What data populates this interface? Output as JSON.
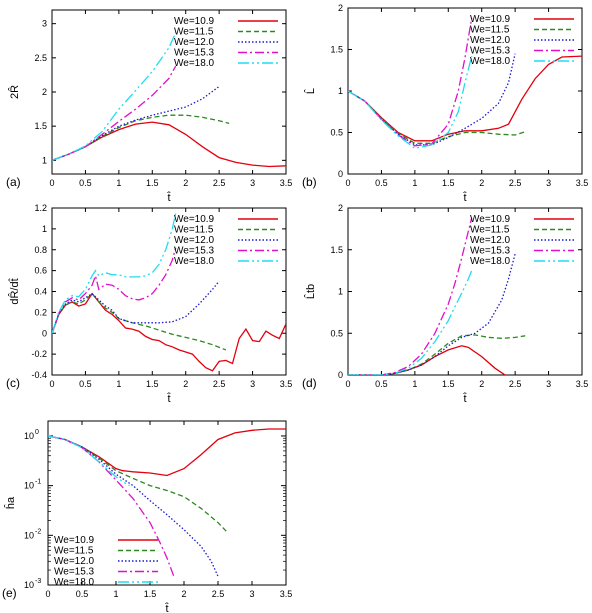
{
  "figure": {
    "colors": {
      "We=10.9": "#e3000f",
      "We=11.5": "#2a8a1d",
      "We=12.0": "#1a1ad6",
      "We=15.3": "#e010c8",
      "We=18.0": "#20dcee"
    }
  },
  "chart_data": [
    {
      "panel": "(a)",
      "type": "line",
      "xlabel": "t̂",
      "ylabel": "2R̂",
      "xlim": [
        0,
        3.5
      ],
      "ylim": [
        0.8,
        3.2
      ],
      "xticks": [
        "0",
        "0.5",
        "1",
        "1.5",
        "2",
        "2.5",
        "3",
        "3.5"
      ],
      "yticks": [
        "1",
        "1.5",
        "2",
        "2.5",
        "3"
      ],
      "legend_position": "top-right",
      "series": [
        {
          "name": "We=10.9",
          "x": [
            0,
            0.25,
            0.5,
            0.75,
            1.0,
            1.25,
            1.5,
            1.75,
            2.0,
            2.25,
            2.5,
            2.75,
            3.0,
            3.25,
            3.5
          ],
          "y": [
            1.0,
            1.09,
            1.2,
            1.34,
            1.45,
            1.53,
            1.56,
            1.52,
            1.38,
            1.2,
            1.04,
            0.97,
            0.93,
            0.91,
            0.92
          ]
        },
        {
          "name": "We=11.5",
          "x": [
            0,
            0.25,
            0.5,
            0.75,
            1.0,
            1.25,
            1.5,
            1.75,
            2.0,
            2.25,
            2.5,
            2.65
          ],
          "y": [
            1.0,
            1.09,
            1.2,
            1.35,
            1.48,
            1.58,
            1.63,
            1.66,
            1.66,
            1.63,
            1.58,
            1.54
          ]
        },
        {
          "name": "We=12.0",
          "x": [
            0,
            0.25,
            0.5,
            0.75,
            1.0,
            1.25,
            1.5,
            1.75,
            2.0,
            2.25,
            2.5
          ],
          "y": [
            1.0,
            1.09,
            1.2,
            1.36,
            1.5,
            1.59,
            1.66,
            1.72,
            1.78,
            1.9,
            2.08
          ]
        },
        {
          "name": "We=15.3",
          "x": [
            0,
            0.25,
            0.5,
            0.75,
            1.0,
            1.25,
            1.5,
            1.75,
            1.85
          ],
          "y": [
            1.0,
            1.09,
            1.2,
            1.38,
            1.57,
            1.75,
            1.95,
            2.2,
            2.38
          ]
        },
        {
          "name": "We=18.0",
          "x": [
            0,
            0.25,
            0.5,
            0.75,
            1.0,
            1.25,
            1.5,
            1.75,
            1.85
          ],
          "y": [
            1.0,
            1.09,
            1.21,
            1.42,
            1.75,
            2.02,
            2.3,
            2.65,
            2.87
          ]
        }
      ]
    },
    {
      "panel": "(b)",
      "type": "line",
      "xlabel": "t̂",
      "ylabel": "L̂",
      "xlim": [
        0,
        3.5
      ],
      "ylim": [
        0,
        2
      ],
      "xticks": [
        "0",
        "0.5",
        "1",
        "1.5",
        "2",
        "2.5",
        "3",
        "3.5"
      ],
      "yticks": [
        "0",
        "0.5",
        "1",
        "1.5",
        "2"
      ],
      "legend_position": "top-right",
      "series": [
        {
          "name": "We=10.9",
          "x": [
            0,
            0.25,
            0.5,
            0.75,
            1.0,
            1.25,
            1.5,
            1.75,
            2.0,
            2.25,
            2.4,
            2.6,
            2.8,
            3.0,
            3.2,
            3.5
          ],
          "y": [
            1.0,
            0.88,
            0.68,
            0.5,
            0.4,
            0.4,
            0.48,
            0.52,
            0.52,
            0.55,
            0.6,
            0.9,
            1.15,
            1.32,
            1.41,
            1.42
          ]
        },
        {
          "name": "We=11.5",
          "x": [
            0,
            0.25,
            0.5,
            0.75,
            1.0,
            1.25,
            1.5,
            1.75,
            2.0,
            2.25,
            2.5,
            2.65
          ],
          "y": [
            1.0,
            0.88,
            0.67,
            0.49,
            0.37,
            0.37,
            0.45,
            0.5,
            0.5,
            0.48,
            0.47,
            0.51
          ]
        },
        {
          "name": "We=12.0",
          "x": [
            0,
            0.25,
            0.5,
            0.75,
            1.0,
            1.25,
            1.5,
            1.75,
            2.0,
            2.25,
            2.4,
            2.5
          ],
          "y": [
            1.0,
            0.88,
            0.66,
            0.48,
            0.35,
            0.35,
            0.44,
            0.55,
            0.67,
            0.85,
            1.1,
            1.45
          ]
        },
        {
          "name": "We=15.3",
          "x": [
            0,
            0.25,
            0.5,
            0.75,
            1.0,
            1.25,
            1.5,
            1.65,
            1.75,
            1.85
          ],
          "y": [
            1.0,
            0.88,
            0.66,
            0.47,
            0.34,
            0.36,
            0.6,
            1.0,
            1.4,
            1.88
          ]
        },
        {
          "name": "We=18.0",
          "x": [
            0,
            0.25,
            0.5,
            0.75,
            1.0,
            1.25,
            1.5,
            1.65,
            1.75,
            1.85
          ],
          "y": [
            1.0,
            0.88,
            0.65,
            0.46,
            0.31,
            0.35,
            0.5,
            0.75,
            1.1,
            1.42
          ]
        }
      ]
    },
    {
      "panel": "(c)",
      "type": "line",
      "xlabel": "t̂",
      "ylabel": "dR̂/dt̂",
      "xlim": [
        0,
        3.5
      ],
      "ylim": [
        -0.4,
        1.2
      ],
      "xticks": [
        "0",
        "0.5",
        "1",
        "1.5",
        "2",
        "2.5",
        "3",
        "3.5"
      ],
      "yticks": [
        "-0.4",
        "-0.2",
        "0",
        "0.2",
        "0.4",
        "0.6",
        "0.8",
        "1",
        "1.2"
      ],
      "legend_position": "top-right",
      "series": [
        {
          "name": "We=10.9",
          "x": [
            0,
            0.1,
            0.2,
            0.3,
            0.4,
            0.5,
            0.6,
            0.7,
            0.8,
            0.9,
            1.0,
            1.1,
            1.2,
            1.3,
            1.4,
            1.5,
            1.6,
            1.7,
            1.8,
            1.9,
            2.0,
            2.1,
            2.2,
            2.3,
            2.4,
            2.5,
            2.6,
            2.7,
            2.8,
            2.9,
            3.0,
            3.1,
            3.2,
            3.3,
            3.4,
            3.5
          ],
          "y": [
            0.0,
            0.18,
            0.27,
            0.3,
            0.26,
            0.28,
            0.38,
            0.3,
            0.22,
            0.18,
            0.12,
            0.05,
            0.04,
            0.02,
            -0.03,
            -0.06,
            -0.07,
            -0.11,
            -0.13,
            -0.16,
            -0.18,
            -0.2,
            -0.27,
            -0.33,
            -0.36,
            -0.27,
            -0.26,
            -0.29,
            -0.05,
            0.04,
            -0.07,
            -0.08,
            0.02,
            -0.02,
            -0.05,
            0.09
          ]
        },
        {
          "name": "We=11.5",
          "x": [
            0,
            0.1,
            0.2,
            0.3,
            0.4,
            0.5,
            0.6,
            0.7,
            0.8,
            0.9,
            1.0,
            1.2,
            1.4,
            1.6,
            1.8,
            2.0,
            2.2,
            2.4,
            2.6
          ],
          "y": [
            0.0,
            0.18,
            0.27,
            0.3,
            0.28,
            0.32,
            0.38,
            0.3,
            0.24,
            0.2,
            0.14,
            0.1,
            0.07,
            0.03,
            -0.01,
            -0.04,
            -0.07,
            -0.11,
            -0.16
          ]
        },
        {
          "name": "We=12.0",
          "x": [
            0,
            0.1,
            0.2,
            0.3,
            0.4,
            0.5,
            0.6,
            0.7,
            0.8,
            0.9,
            1.0,
            1.2,
            1.4,
            1.6,
            1.8,
            2.0,
            2.2,
            2.4,
            2.5
          ],
          "y": [
            0.0,
            0.18,
            0.28,
            0.32,
            0.3,
            0.34,
            0.38,
            0.32,
            0.26,
            0.22,
            0.14,
            0.1,
            0.1,
            0.1,
            0.11,
            0.16,
            0.28,
            0.42,
            0.5
          ]
        },
        {
          "name": "We=15.3",
          "x": [
            0,
            0.1,
            0.2,
            0.3,
            0.4,
            0.5,
            0.6,
            0.65,
            0.7,
            0.8,
            0.9,
            1.0,
            1.1,
            1.2,
            1.3,
            1.4,
            1.5,
            1.6,
            1.7,
            1.8,
            1.85
          ],
          "y": [
            0.0,
            0.19,
            0.3,
            0.34,
            0.32,
            0.38,
            0.46,
            0.55,
            0.42,
            0.47,
            0.46,
            0.42,
            0.36,
            0.33,
            0.32,
            0.34,
            0.38,
            0.46,
            0.56,
            0.7,
            0.82
          ]
        },
        {
          "name": "We=18.0",
          "x": [
            0,
            0.1,
            0.2,
            0.3,
            0.4,
            0.5,
            0.6,
            0.65,
            0.7,
            0.8,
            0.9,
            1.0,
            1.1,
            1.2,
            1.3,
            1.4,
            1.5,
            1.6,
            1.7,
            1.8,
            1.85
          ],
          "y": [
            0.0,
            0.2,
            0.32,
            0.36,
            0.35,
            0.42,
            0.55,
            0.6,
            0.55,
            0.58,
            0.56,
            0.56,
            0.54,
            0.54,
            0.54,
            0.55,
            0.58,
            0.66,
            0.8,
            1.0,
            1.15
          ]
        }
      ]
    },
    {
      "panel": "(d)",
      "type": "line",
      "xlabel": "t̂",
      "ylabel": "L̂tb",
      "xlim": [
        0,
        3.5
      ],
      "ylim": [
        0,
        2
      ],
      "xticks": [
        "0",
        "0.5",
        "1",
        "1.5",
        "2",
        "2.5",
        "3",
        "3.5"
      ],
      "yticks": [
        "0",
        "0.5",
        "1",
        "1.5",
        "2"
      ],
      "legend_position": "top-right",
      "series": [
        {
          "name": "We=10.9",
          "x": [
            0,
            0.5,
            0.7,
            0.9,
            1.1,
            1.3,
            1.5,
            1.7,
            1.8,
            2.0,
            2.2,
            2.35
          ],
          "y": [
            0,
            0,
            0.02,
            0.06,
            0.12,
            0.22,
            0.3,
            0.35,
            0.33,
            0.22,
            0.08,
            0.0
          ]
        },
        {
          "name": "We=11.5",
          "x": [
            0,
            0.5,
            0.7,
            0.9,
            1.1,
            1.3,
            1.5,
            1.7,
            1.9,
            2.1,
            2.3,
            2.5,
            2.65
          ],
          "y": [
            0,
            0,
            0.02,
            0.06,
            0.13,
            0.25,
            0.38,
            0.47,
            0.48,
            0.45,
            0.44,
            0.45,
            0.47
          ]
        },
        {
          "name": "We=12.0",
          "x": [
            0,
            0.5,
            0.7,
            0.9,
            1.1,
            1.3,
            1.5,
            1.7,
            1.9,
            2.1,
            2.3,
            2.4,
            2.5
          ],
          "y": [
            0,
            0,
            0.02,
            0.06,
            0.12,
            0.22,
            0.35,
            0.45,
            0.5,
            0.62,
            0.9,
            1.15,
            1.45
          ]
        },
        {
          "name": "We=15.3",
          "x": [
            0,
            0.5,
            0.7,
            0.9,
            1.1,
            1.3,
            1.5,
            1.6,
            1.7,
            1.8,
            1.85
          ],
          "y": [
            0,
            0,
            0.03,
            0.1,
            0.25,
            0.5,
            0.85,
            1.1,
            1.4,
            1.72,
            1.88
          ]
        },
        {
          "name": "We=18.0",
          "x": [
            0,
            0.5,
            0.7,
            0.9,
            1.1,
            1.3,
            1.5,
            1.6,
            1.7,
            1.8,
            1.85
          ],
          "y": [
            0,
            0,
            0.02,
            0.08,
            0.2,
            0.4,
            0.65,
            0.82,
            0.98,
            1.15,
            1.25
          ]
        }
      ]
    },
    {
      "panel": "(e)",
      "type": "line",
      "xlabel": "t̂",
      "ylabel": "ĥa",
      "yscale": "log",
      "xlim": [
        0,
        3.5
      ],
      "ylim": [
        0.001,
        2
      ],
      "xticks": [
        "0",
        "0.5",
        "1",
        "1.5",
        "2",
        "2.5",
        "3",
        "3.5"
      ],
      "yticks": [
        {
          "value": 1,
          "label": "10",
          "exp": "0"
        },
        {
          "value": 0.1,
          "label": "10",
          "exp": "-1"
        },
        {
          "value": 0.01,
          "label": "10",
          "exp": "-2"
        },
        {
          "value": 0.001,
          "label": "10",
          "exp": "-3"
        }
      ],
      "legend_position": "bottom-left",
      "series": [
        {
          "name": "We=10.9",
          "x": [
            0,
            0.25,
            0.5,
            0.75,
            1.0,
            1.1,
            1.25,
            1.5,
            1.75,
            2.0,
            2.25,
            2.5,
            2.75,
            3.0,
            3.25,
            3.5
          ],
          "y": [
            1.0,
            0.85,
            0.6,
            0.38,
            0.22,
            0.2,
            0.19,
            0.18,
            0.16,
            0.22,
            0.42,
            0.85,
            1.15,
            1.3,
            1.38,
            1.38
          ]
        },
        {
          "name": "We=11.5",
          "x": [
            0,
            0.25,
            0.5,
            0.75,
            1.0,
            1.25,
            1.5,
            1.75,
            2.0,
            2.25,
            2.5,
            2.65
          ],
          "y": [
            1.0,
            0.85,
            0.6,
            0.36,
            0.2,
            0.14,
            0.1,
            0.08,
            0.06,
            0.035,
            0.018,
            0.011
          ]
        },
        {
          "name": "We=12.0",
          "x": [
            0,
            0.25,
            0.5,
            0.75,
            1.0,
            1.25,
            1.5,
            1.75,
            2.0,
            2.25,
            2.4,
            2.5
          ],
          "y": [
            1.0,
            0.85,
            0.6,
            0.34,
            0.17,
            0.1,
            0.05,
            0.026,
            0.013,
            0.006,
            0.003,
            0.0015
          ]
        },
        {
          "name": "We=15.3",
          "x": [
            0,
            0.25,
            0.5,
            0.75,
            1.0,
            1.25,
            1.5,
            1.65,
            1.75,
            1.85
          ],
          "y": [
            1.0,
            0.85,
            0.58,
            0.3,
            0.13,
            0.055,
            0.018,
            0.007,
            0.0035,
            0.0015
          ]
        },
        {
          "name": "We=18.0",
          "x": [
            0,
            0.25,
            0.5,
            0.75,
            1.0,
            1.1,
            1.2
          ],
          "y": [
            1.0,
            0.85,
            0.58,
            0.3,
            0.15,
            0.12,
            0.1
          ]
        }
      ]
    }
  ]
}
